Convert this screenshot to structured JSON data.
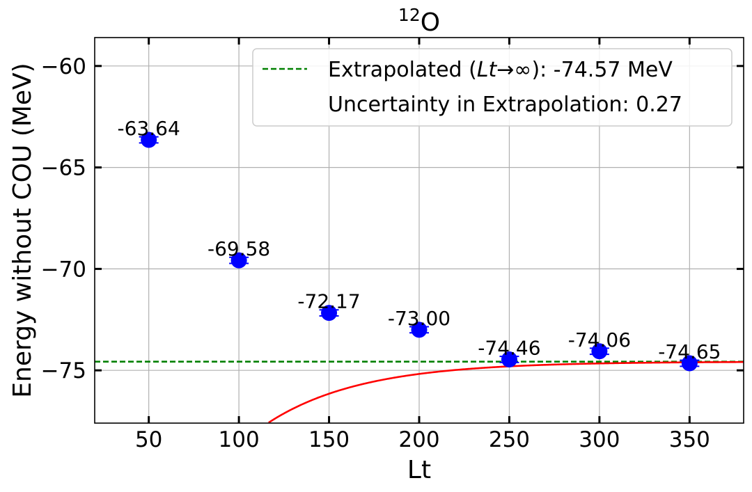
{
  "chart_data": {
    "type": "scatter",
    "title_mass": "12",
    "title_element": "O",
    "xlabel": "Lt",
    "ylabel": "Energy without COU (MeV)",
    "xlim": [
      20,
      380
    ],
    "ylim": [
      -77.6,
      -58.6
    ],
    "xticks": [
      50,
      100,
      150,
      200,
      250,
      300,
      350
    ],
    "yticks": [
      -60,
      -65,
      -70,
      -75
    ],
    "ytick_labels": [
      "−60",
      "−65",
      "−70",
      "−75"
    ],
    "grid": true,
    "points": [
      {
        "x": 50,
        "y": -63.64,
        "label": "-63.64",
        "err": 0.15
      },
      {
        "x": 100,
        "y": -69.58,
        "label": "-69.58",
        "err": 0.15
      },
      {
        "x": 150,
        "y": -72.17,
        "label": "-72.17",
        "err": 0.15
      },
      {
        "x": 200,
        "y": -73.0,
        "label": "-73.00",
        "err": 0.15
      },
      {
        "x": 250,
        "y": -74.46,
        "label": "-74.46",
        "err": 0.15
      },
      {
        "x": 300,
        "y": -74.06,
        "label": "-74.06",
        "err": 0.15
      },
      {
        "x": 350,
        "y": -74.65,
        "label": "-74.65",
        "err": 0.15
      }
    ],
    "fit": {
      "type": "exponential",
      "asymptote": -74.57,
      "amplitude": -28.0,
      "decay_length": 52.2
    },
    "extrapolated_value": -74.57,
    "legend": {
      "position": "top-right",
      "extrapolated_prefix": "Extrapolated (",
      "extrapolated_math_var": "Lt",
      "extrapolated_arrow": "→∞",
      "extrapolated_suffix": "): -74.57 MeV",
      "uncertainty": "Uncertainty in Extrapolation: 0.27"
    },
    "colors": {
      "points": "#0000ff",
      "fit": "#ff0000",
      "extrapolated": "#008000",
      "grid": "#b0b0b0"
    }
  }
}
